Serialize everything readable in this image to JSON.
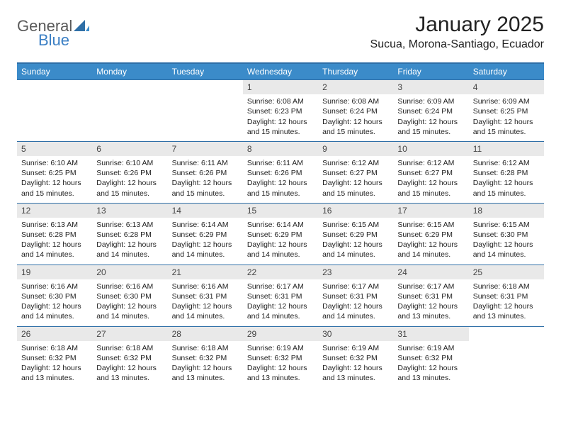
{
  "brand": {
    "text_general": "General",
    "text_blue": "Blue",
    "color_general": "#5a5a5a",
    "color_blue": "#3b7fc4"
  },
  "title": "January 2025",
  "location": "Sucua, Morona-Santiago, Ecuador",
  "colors": {
    "header_bg": "#3b8bc9",
    "rule": "#2f6fa7",
    "daybar": "#e9e9e9",
    "text": "#222222",
    "page_bg": "#ffffff"
  },
  "days_of_week": [
    "Sunday",
    "Monday",
    "Tuesday",
    "Wednesday",
    "Thursday",
    "Friday",
    "Saturday"
  ],
  "weeks": [
    [
      {
        "num": "",
        "sunrise": "",
        "sunset": "",
        "daylight": ""
      },
      {
        "num": "",
        "sunrise": "",
        "sunset": "",
        "daylight": ""
      },
      {
        "num": "",
        "sunrise": "",
        "sunset": "",
        "daylight": ""
      },
      {
        "num": "1",
        "sunrise": "Sunrise: 6:08 AM",
        "sunset": "Sunset: 6:23 PM",
        "daylight": "Daylight: 12 hours and 15 minutes."
      },
      {
        "num": "2",
        "sunrise": "Sunrise: 6:08 AM",
        "sunset": "Sunset: 6:24 PM",
        "daylight": "Daylight: 12 hours and 15 minutes."
      },
      {
        "num": "3",
        "sunrise": "Sunrise: 6:09 AM",
        "sunset": "Sunset: 6:24 PM",
        "daylight": "Daylight: 12 hours and 15 minutes."
      },
      {
        "num": "4",
        "sunrise": "Sunrise: 6:09 AM",
        "sunset": "Sunset: 6:25 PM",
        "daylight": "Daylight: 12 hours and 15 minutes."
      }
    ],
    [
      {
        "num": "5",
        "sunrise": "Sunrise: 6:10 AM",
        "sunset": "Sunset: 6:25 PM",
        "daylight": "Daylight: 12 hours and 15 minutes."
      },
      {
        "num": "6",
        "sunrise": "Sunrise: 6:10 AM",
        "sunset": "Sunset: 6:26 PM",
        "daylight": "Daylight: 12 hours and 15 minutes."
      },
      {
        "num": "7",
        "sunrise": "Sunrise: 6:11 AM",
        "sunset": "Sunset: 6:26 PM",
        "daylight": "Daylight: 12 hours and 15 minutes."
      },
      {
        "num": "8",
        "sunrise": "Sunrise: 6:11 AM",
        "sunset": "Sunset: 6:26 PM",
        "daylight": "Daylight: 12 hours and 15 minutes."
      },
      {
        "num": "9",
        "sunrise": "Sunrise: 6:12 AM",
        "sunset": "Sunset: 6:27 PM",
        "daylight": "Daylight: 12 hours and 15 minutes."
      },
      {
        "num": "10",
        "sunrise": "Sunrise: 6:12 AM",
        "sunset": "Sunset: 6:27 PM",
        "daylight": "Daylight: 12 hours and 15 minutes."
      },
      {
        "num": "11",
        "sunrise": "Sunrise: 6:12 AM",
        "sunset": "Sunset: 6:28 PM",
        "daylight": "Daylight: 12 hours and 15 minutes."
      }
    ],
    [
      {
        "num": "12",
        "sunrise": "Sunrise: 6:13 AM",
        "sunset": "Sunset: 6:28 PM",
        "daylight": "Daylight: 12 hours and 14 minutes."
      },
      {
        "num": "13",
        "sunrise": "Sunrise: 6:13 AM",
        "sunset": "Sunset: 6:28 PM",
        "daylight": "Daylight: 12 hours and 14 minutes."
      },
      {
        "num": "14",
        "sunrise": "Sunrise: 6:14 AM",
        "sunset": "Sunset: 6:29 PM",
        "daylight": "Daylight: 12 hours and 14 minutes."
      },
      {
        "num": "15",
        "sunrise": "Sunrise: 6:14 AM",
        "sunset": "Sunset: 6:29 PM",
        "daylight": "Daylight: 12 hours and 14 minutes."
      },
      {
        "num": "16",
        "sunrise": "Sunrise: 6:15 AM",
        "sunset": "Sunset: 6:29 PM",
        "daylight": "Daylight: 12 hours and 14 minutes."
      },
      {
        "num": "17",
        "sunrise": "Sunrise: 6:15 AM",
        "sunset": "Sunset: 6:29 PM",
        "daylight": "Daylight: 12 hours and 14 minutes."
      },
      {
        "num": "18",
        "sunrise": "Sunrise: 6:15 AM",
        "sunset": "Sunset: 6:30 PM",
        "daylight": "Daylight: 12 hours and 14 minutes."
      }
    ],
    [
      {
        "num": "19",
        "sunrise": "Sunrise: 6:16 AM",
        "sunset": "Sunset: 6:30 PM",
        "daylight": "Daylight: 12 hours and 14 minutes."
      },
      {
        "num": "20",
        "sunrise": "Sunrise: 6:16 AM",
        "sunset": "Sunset: 6:30 PM",
        "daylight": "Daylight: 12 hours and 14 minutes."
      },
      {
        "num": "21",
        "sunrise": "Sunrise: 6:16 AM",
        "sunset": "Sunset: 6:31 PM",
        "daylight": "Daylight: 12 hours and 14 minutes."
      },
      {
        "num": "22",
        "sunrise": "Sunrise: 6:17 AM",
        "sunset": "Sunset: 6:31 PM",
        "daylight": "Daylight: 12 hours and 14 minutes."
      },
      {
        "num": "23",
        "sunrise": "Sunrise: 6:17 AM",
        "sunset": "Sunset: 6:31 PM",
        "daylight": "Daylight: 12 hours and 14 minutes."
      },
      {
        "num": "24",
        "sunrise": "Sunrise: 6:17 AM",
        "sunset": "Sunset: 6:31 PM",
        "daylight": "Daylight: 12 hours and 13 minutes."
      },
      {
        "num": "25",
        "sunrise": "Sunrise: 6:18 AM",
        "sunset": "Sunset: 6:31 PM",
        "daylight": "Daylight: 12 hours and 13 minutes."
      }
    ],
    [
      {
        "num": "26",
        "sunrise": "Sunrise: 6:18 AM",
        "sunset": "Sunset: 6:32 PM",
        "daylight": "Daylight: 12 hours and 13 minutes."
      },
      {
        "num": "27",
        "sunrise": "Sunrise: 6:18 AM",
        "sunset": "Sunset: 6:32 PM",
        "daylight": "Daylight: 12 hours and 13 minutes."
      },
      {
        "num": "28",
        "sunrise": "Sunrise: 6:18 AM",
        "sunset": "Sunset: 6:32 PM",
        "daylight": "Daylight: 12 hours and 13 minutes."
      },
      {
        "num": "29",
        "sunrise": "Sunrise: 6:19 AM",
        "sunset": "Sunset: 6:32 PM",
        "daylight": "Daylight: 12 hours and 13 minutes."
      },
      {
        "num": "30",
        "sunrise": "Sunrise: 6:19 AM",
        "sunset": "Sunset: 6:32 PM",
        "daylight": "Daylight: 12 hours and 13 minutes."
      },
      {
        "num": "31",
        "sunrise": "Sunrise: 6:19 AM",
        "sunset": "Sunset: 6:32 PM",
        "daylight": "Daylight: 12 hours and 13 minutes."
      },
      {
        "num": "",
        "sunrise": "",
        "sunset": "",
        "daylight": ""
      }
    ]
  ]
}
